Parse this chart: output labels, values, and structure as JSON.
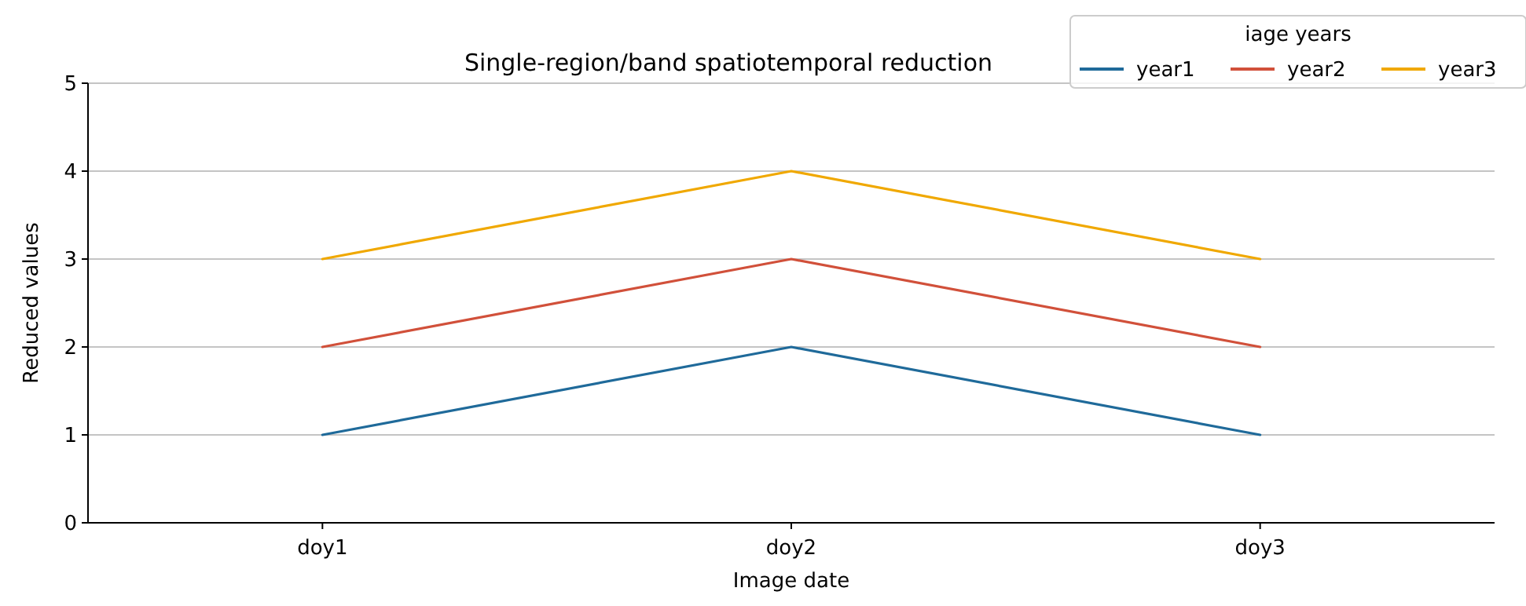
{
  "chart_data": {
    "type": "line",
    "title": "Single-region/band spatiotemporal reduction",
    "xlabel": "Image date",
    "ylabel": "Reduced values",
    "legend_title": "iage years",
    "categories": [
      "doy1",
      "doy2",
      "doy3"
    ],
    "series": [
      {
        "name": "year1",
        "color": "#1f6a9a",
        "values": [
          1,
          2,
          1
        ]
      },
      {
        "name": "year2",
        "color": "#d1503a",
        "values": [
          2,
          3,
          2
        ]
      },
      {
        "name": "year3",
        "color": "#f0a800",
        "values": [
          3,
          4,
          3
        ]
      }
    ],
    "ylim": [
      0,
      5
    ],
    "yticks": [
      0,
      1,
      2,
      3,
      4,
      5
    ],
    "grid": "y",
    "legend": "top right",
    "marker": "none",
    "line_style": "solid"
  }
}
